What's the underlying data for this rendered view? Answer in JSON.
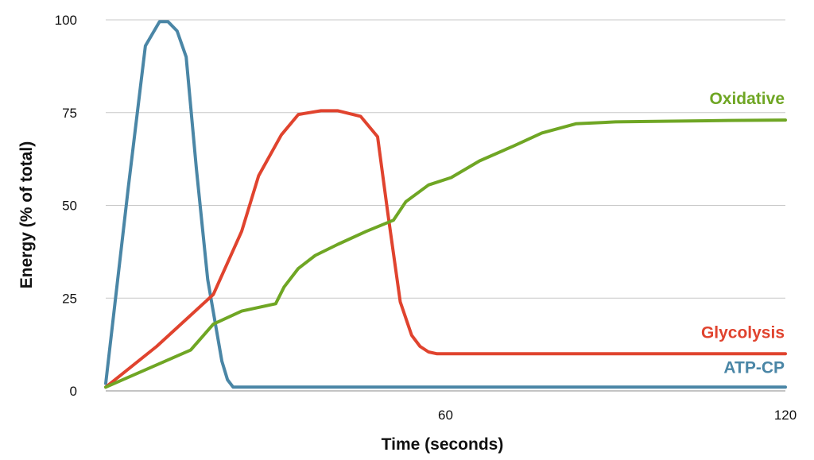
{
  "chart_data": {
    "type": "line",
    "title": "",
    "xlabel": "Time (seconds)",
    "ylabel": "Energy (% of total)",
    "xlim": [
      0,
      120
    ],
    "ylim": [
      0,
      100
    ],
    "x_ticks": [
      60,
      120
    ],
    "y_ticks": [
      0,
      25,
      50,
      75,
      100
    ],
    "grid": "horizontal",
    "series": [
      {
        "name": "ATP-CP",
        "color": "#4a86a6",
        "points": [
          [
            0,
            2
          ],
          [
            4,
            55
          ],
          [
            7,
            93
          ],
          [
            9.5,
            99.5
          ],
          [
            11,
            99.5
          ],
          [
            12.6,
            97
          ],
          [
            14.2,
            90
          ],
          [
            16,
            60
          ],
          [
            18,
            30
          ],
          [
            20.5,
            8
          ],
          [
            21.5,
            3
          ],
          [
            22.5,
            1
          ],
          [
            30,
            1
          ],
          [
            60,
            1
          ],
          [
            90,
            1
          ],
          [
            120,
            1
          ]
        ]
      },
      {
        "name": "Glycolysis",
        "color": "#e0432e",
        "points": [
          [
            0,
            1
          ],
          [
            9,
            12
          ],
          [
            19,
            26
          ],
          [
            24,
            43
          ],
          [
            27,
            58
          ],
          [
            31,
            69
          ],
          [
            34,
            74.5
          ],
          [
            38,
            75.5
          ],
          [
            41,
            75.5
          ],
          [
            45,
            74
          ],
          [
            48,
            68.5
          ],
          [
            49.8,
            48
          ],
          [
            52,
            24
          ],
          [
            54,
            15
          ],
          [
            55.5,
            12
          ],
          [
            57,
            10.5
          ],
          [
            58.5,
            10
          ],
          [
            70,
            10
          ],
          [
            90,
            10
          ],
          [
            100,
            10
          ],
          [
            120,
            10
          ]
        ]
      },
      {
        "name": "Oxidative",
        "color": "#6fa624",
        "points": [
          [
            0,
            1
          ],
          [
            15,
            11
          ],
          [
            19,
            18
          ],
          [
            24,
            21.5
          ],
          [
            30,
            23.5
          ],
          [
            31.5,
            28
          ],
          [
            34,
            33
          ],
          [
            37,
            36.5
          ],
          [
            41,
            39.5
          ],
          [
            46,
            43
          ],
          [
            50.8,
            46
          ],
          [
            53,
            51
          ],
          [
            57,
            55.5
          ],
          [
            61,
            57.5
          ],
          [
            66,
            62
          ],
          [
            72,
            66
          ],
          [
            77,
            69.5
          ],
          [
            83,
            72
          ],
          [
            90,
            72.5
          ],
          [
            100,
            72.7
          ],
          [
            110,
            72.9
          ],
          [
            120,
            73
          ]
        ]
      }
    ]
  }
}
